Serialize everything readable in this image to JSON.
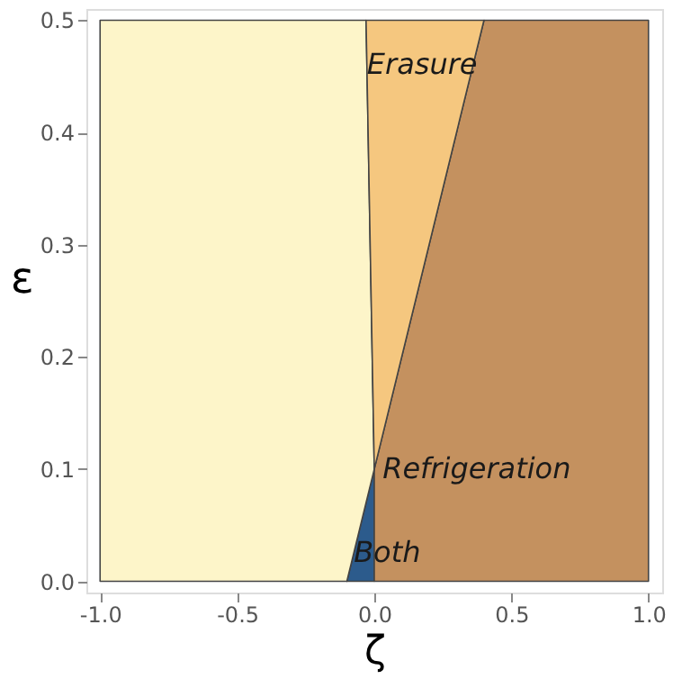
{
  "chart_data": {
    "type": "area",
    "stacked": true,
    "xlabel": "ζ",
    "ylabel": "ε",
    "x": [
      -1,
      -0.1,
      -0.03,
      0,
      0,
      0.4,
      1
    ],
    "series": [
      {
        "color": "#2c5b8c",
        "values": [
          null,
          0,
          0.07,
          0.1,
          null,
          null,
          null
        ]
      },
      {
        "color": "#c4915f",
        "values": [
          null,
          null,
          null,
          null,
          0.1,
          0.5,
          0.5
        ]
      },
      {
        "color": "#fdf5c9",
        "values": [
          0.5,
          0.5,
          0.43,
          0,
          null,
          null,
          null
        ]
      },
      {
        "color": "#f5c77f",
        "values": [
          null,
          null,
          0,
          0.4,
          0.4,
          0,
          null
        ]
      }
    ],
    "xlim": [
      -1.05,
      1.05
    ],
    "ylim": [
      -0.01,
      0.51
    ],
    "xticks": [
      {
        "value": -1,
        "label": "-1.0"
      },
      {
        "value": -0.5,
        "label": "-0.5"
      },
      {
        "value": 0,
        "label": "0.0"
      },
      {
        "value": 0.5,
        "label": "0.5"
      },
      {
        "value": 1,
        "label": "1.0"
      }
    ],
    "yticks": [
      {
        "value": 0,
        "label": "0.0"
      },
      0.1,
      0.2,
      0.3,
      0.4,
      0.5
    ],
    "annotations": [
      {
        "text": "Erasure",
        "x": -0.027,
        "y": 0.46
      },
      {
        "text": "Refrigeration",
        "x": 0.03,
        "y": 0.1
      },
      {
        "text": "Both",
        "x": -0.075,
        "y": 0.025
      }
    ],
    "grid": false
  }
}
